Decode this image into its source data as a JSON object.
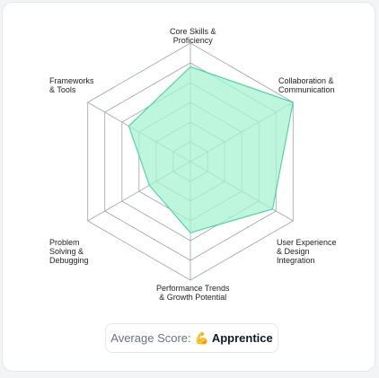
{
  "chart_data": {
    "type": "radar",
    "axes": [
      "Core Skills &\nProficiency",
      "Collaboration &\nCommunication",
      "User Experience\n& Design\nIntegration",
      "Performance Trends\n& Growth Potential",
      "Problem\nSolving &\nDebugging",
      "Frameworks\n& Tools"
    ],
    "values": [
      4,
      5,
      4,
      3,
      2,
      3
    ],
    "rmax": 5,
    "grid_levels": 6,
    "fill_color": "#a7f3d0",
    "stroke_color": "#34d399",
    "grid_color": "#9ca3af"
  },
  "score": {
    "prefix": "Average Score:",
    "emoji": "💪",
    "level": "Apprentice"
  }
}
